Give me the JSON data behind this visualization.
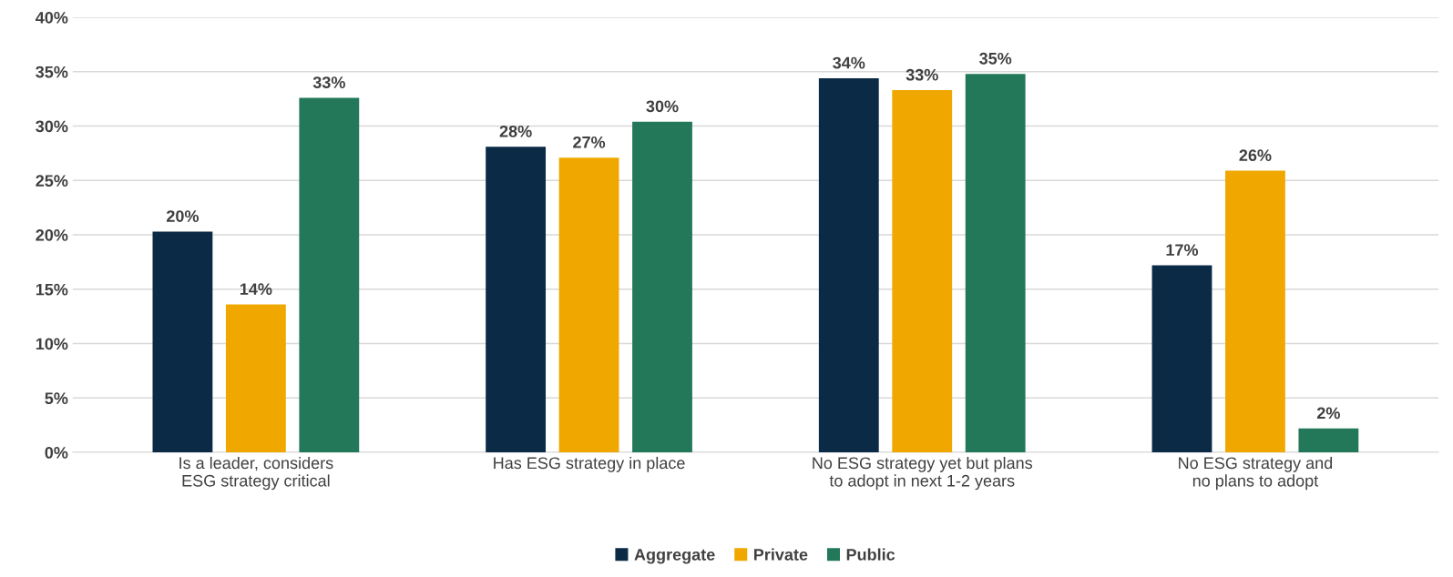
{
  "chart_data": {
    "type": "bar",
    "categories": [
      "Is a leader, considers\nESG strategy critical",
      "Has ESG strategy in place",
      "No ESG strategy yet but plans\nto adopt in next 1-2 years",
      "No ESG strategy and\nno plans to adopt"
    ],
    "series": [
      {
        "name": "Aggregate",
        "color": "#0b2a45",
        "values": [
          20.3,
          28.1,
          34.4,
          17.2
        ],
        "value_labels": [
          "20%",
          "28%",
          "34%",
          "17%"
        ]
      },
      {
        "name": "Private",
        "color": "#f0a800",
        "values": [
          13.6,
          27.1,
          33.3,
          25.9
        ],
        "value_labels": [
          "14%",
          "27%",
          "33%",
          "26%"
        ]
      },
      {
        "name": "Public",
        "color": "#23785a",
        "values": [
          32.6,
          30.4,
          34.8,
          2.2
        ],
        "value_labels": [
          "33%",
          "30%",
          "35%",
          "2%"
        ]
      }
    ],
    "ylim": [
      0,
      40
    ],
    "yticks": [
      {
        "value": 0,
        "label": "0%"
      },
      {
        "value": 5,
        "label": "5%"
      },
      {
        "value": 10,
        "label": "10%"
      },
      {
        "value": 15,
        "label": "15%"
      },
      {
        "value": 20,
        "label": "20%"
      },
      {
        "value": 25,
        "label": "25%"
      },
      {
        "value": 30,
        "label": "30%"
      },
      {
        "value": 35,
        "label": "35%"
      },
      {
        "value": 40,
        "label": "40%"
      }
    ],
    "grid": "y",
    "legend": "bottom"
  }
}
